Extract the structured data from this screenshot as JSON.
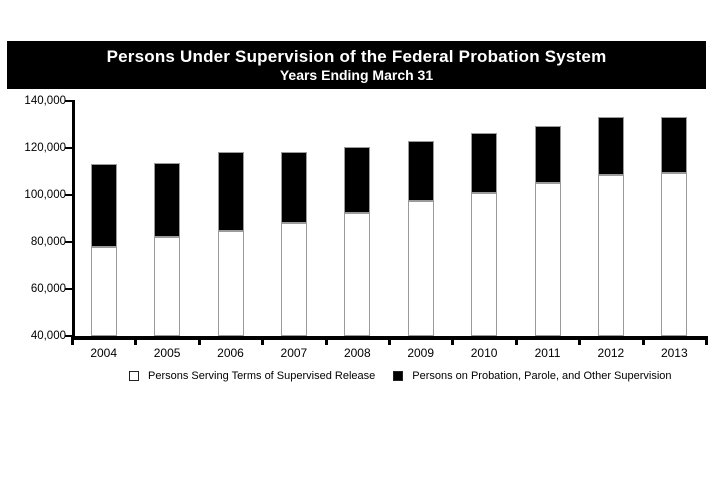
{
  "title": {
    "line1": "Persons Under Supervision of the Federal Probation System",
    "line2": "Years Ending March 31"
  },
  "legend": {
    "items": [
      {
        "label": "Persons Serving Terms of Supervised Release",
        "swatch_color": "#ffffff"
      },
      {
        "label": "Persons on Probation, Parole, and Other Supervision",
        "swatch_color": "#000000"
      }
    ]
  },
  "colors": {
    "banner_bg": "#000000",
    "banner_text": "#ffffff",
    "axis": "#000000",
    "bar_border": "#9b9b9b",
    "series_white": "#ffffff",
    "series_black": "#000000"
  },
  "chart_data": {
    "type": "bar",
    "stacked": true,
    "title": "Persons Under Supervision of the Federal Probation System",
    "subtitle": "Years Ending March 31",
    "categories": [
      "2004",
      "2005",
      "2006",
      "2007",
      "2008",
      "2009",
      "2010",
      "2011",
      "2012",
      "2013"
    ],
    "series": [
      {
        "name": "Persons Serving Terms of Supervised Release",
        "color": "#ffffff",
        "values": [
          78000,
          82000,
          84500,
          88000,
          92500,
          97500,
          101000,
          105000,
          108500,
          109500
        ]
      },
      {
        "name": "Persons on Probation, Parole, and Other Supervision",
        "color": "#000000",
        "values": [
          35000,
          31500,
          34000,
          30500,
          28000,
          25500,
          25500,
          24500,
          24500,
          23500
        ]
      }
    ],
    "totals": [
      113000,
      113500,
      118500,
      118500,
      120500,
      123000,
      126500,
      129500,
      133000,
      133000
    ],
    "xlabel": "",
    "ylabel": "",
    "ylim": [
      40000,
      140000
    ],
    "ytick_step": 20000,
    "ytick_labels": [
      "40,000",
      "60,000",
      "80,000",
      "100,000",
      "120,000",
      "140,000"
    ],
    "grid": false,
    "legend_position": "bottom"
  }
}
